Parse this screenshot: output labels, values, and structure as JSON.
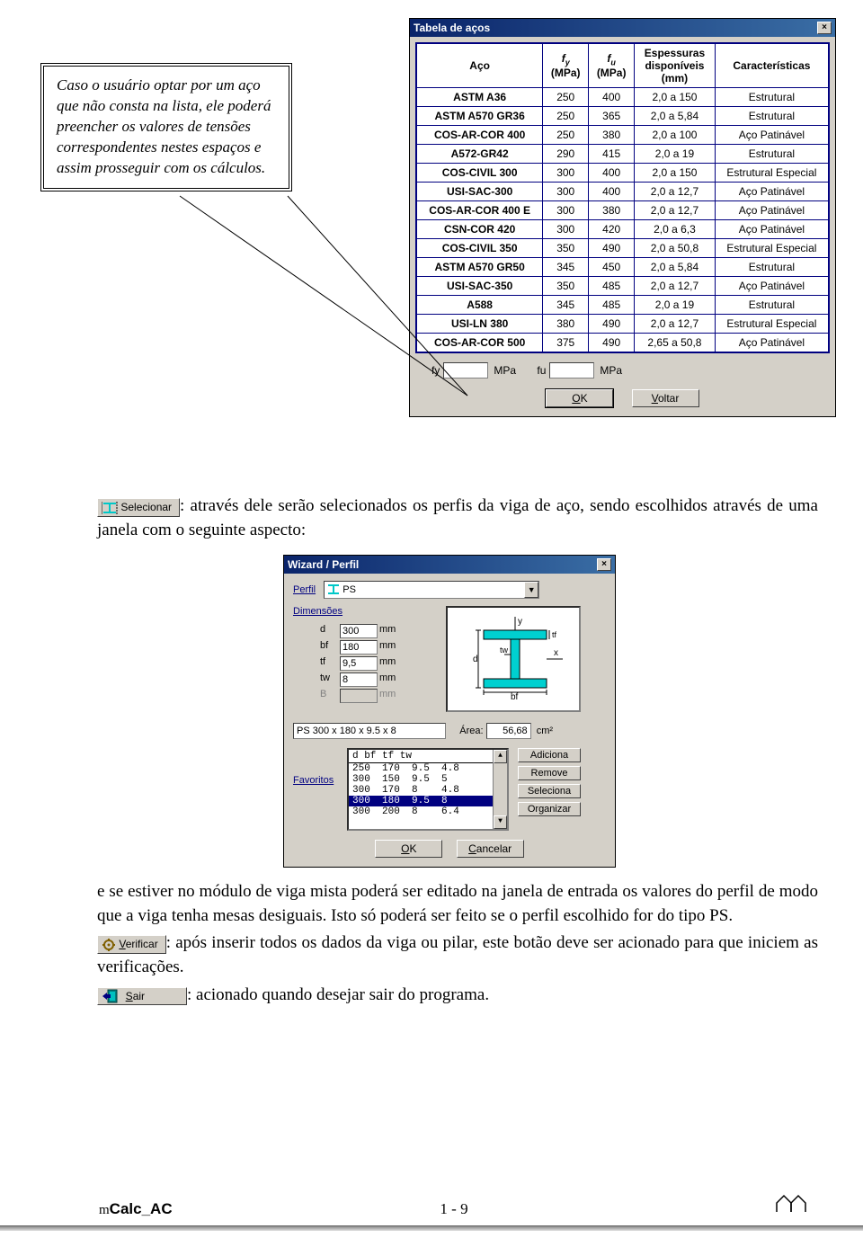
{
  "callout_text": "Caso o usuário optar por um aço que não consta na lista, ele poderá preencher os valores de tensões correspondentes nestes espaços e assim prosseguir com os cálculos.",
  "dialogA": {
    "title": "Tabela de  aços",
    "headers": {
      "c1": "Aço",
      "c2a": "f",
      "c2b": "y",
      "c2unit": "(MPa)",
      "c3a": "f",
      "c3b": "u",
      "c3unit": "(MPa)",
      "c4a": "Espessuras",
      "c4b": "disponíveis",
      "c4c": "(mm)",
      "c5": "Características"
    },
    "rows": [
      {
        "aco": "ASTM A36",
        "fy": "250",
        "fu": "400",
        "esp": "2,0 a 150",
        "car": "Estrutural"
      },
      {
        "aco": "ASTM A570 GR36",
        "fy": "250",
        "fu": "365",
        "esp": "2,0 a 5,84",
        "car": "Estrutural"
      },
      {
        "aco": "COS-AR-COR 400",
        "fy": "250",
        "fu": "380",
        "esp": "2,0 a 100",
        "car": "Aço Patinável"
      },
      {
        "aco": "A572-GR42",
        "fy": "290",
        "fu": "415",
        "esp": "2,0 a 19",
        "car": "Estrutural"
      },
      {
        "aco": "COS-CIVIL 300",
        "fy": "300",
        "fu": "400",
        "esp": "2,0 a 150",
        "car": "Estrutural Especial"
      },
      {
        "aco": "USI-SAC-300",
        "fy": "300",
        "fu": "400",
        "esp": "2,0 a 12,7",
        "car": "Aço Patinável"
      },
      {
        "aco": "COS-AR-COR 400 E",
        "fy": "300",
        "fu": "380",
        "esp": "2,0 a 12,7",
        "car": "Aço Patinável"
      },
      {
        "aco": "CSN-COR 420",
        "fy": "300",
        "fu": "420",
        "esp": "2,0 a 6,3",
        "car": "Aço Patinável"
      },
      {
        "aco": "COS-CIVIL 350",
        "fy": "350",
        "fu": "490",
        "esp": "2,0 a 50,8",
        "car": "Estrutural Especial"
      },
      {
        "aco": "ASTM A570 GR50",
        "fy": "345",
        "fu": "450",
        "esp": "2,0 a 5,84",
        "car": "Estrutural"
      },
      {
        "aco": "USI-SAC-350",
        "fy": "350",
        "fu": "485",
        "esp": "2,0 a 12,7",
        "car": "Aço Patinável"
      },
      {
        "aco": "A588",
        "fy": "345",
        "fu": "485",
        "esp": "2,0 a 19",
        "car": "Estrutural"
      },
      {
        "aco": "USI-LN 380",
        "fy": "380",
        "fu": "490",
        "esp": "2,0 a 12,7",
        "car": "Estrutural Especial"
      },
      {
        "aco": "COS-AR-COR 500",
        "fy": "375",
        "fu": "490",
        "esp": "2,65 a 50,8",
        "car": "Aço Patinável"
      }
    ],
    "fy_label": "fy",
    "fu_label": "fu",
    "mpa": "MPa",
    "ok": "OK",
    "voltar": "Voltar"
  },
  "btn_selecionar": "Selecionar",
  "para_sel": ": através dele serão selecionados os perfis da viga de aço, sendo escolhidos através de uma janela com o seguinte aspecto:",
  "dialogB": {
    "title": "Wizard / Perfil",
    "perfil_label": "Perfil",
    "perfil_value": "PS",
    "dimensoes": "Dimensões",
    "dims": {
      "d": "300",
      "bf": "180",
      "tf": "9,5",
      "tw": "8",
      "B": ""
    },
    "dim_labels": {
      "d": "d",
      "bf": "bf",
      "tf": "tf",
      "tw": "tw",
      "B": "B",
      "mm": "mm"
    },
    "profile_name": "PS 300 x 180 x 9.5 x 8",
    "area_label": "Área:",
    "area_value": "56,68",
    "area_unit": "cm²",
    "favoritos": "Favoritos",
    "list_header": "d    bf   tf   tw",
    "list_rows": [
      "250  170  9.5  4.8",
      "300  150  9.5  5",
      "300  170  8    4.8",
      "300  180  9.5  8",
      "300  200  8    6.4"
    ],
    "selected_row_index": 3,
    "adiciona": "Adiciona",
    "remove": "Remove",
    "seleciona": "Seleciona",
    "organizar": "Organizar",
    "ok": "OK",
    "cancelar": "Cancelar"
  },
  "para_after_b": "e se estiver no módulo de viga mista poderá ser editado na janela de entrada os valores do perfil de modo que a viga tenha mesas desiguais. Isto só poderá ser feito se o perfil escolhido for do tipo PS.",
  "btn_verificar": "Verificar",
  "para_verificar": ": após inserir todos os dados da viga ou pilar, este botão deve ser acionado para que iniciem as verificações.",
  "btn_sair": "Sair",
  "para_sair": ": acionado quando desejar sair do programa.",
  "footer": {
    "product": "Calc_AC",
    "page": "1 - 9"
  }
}
